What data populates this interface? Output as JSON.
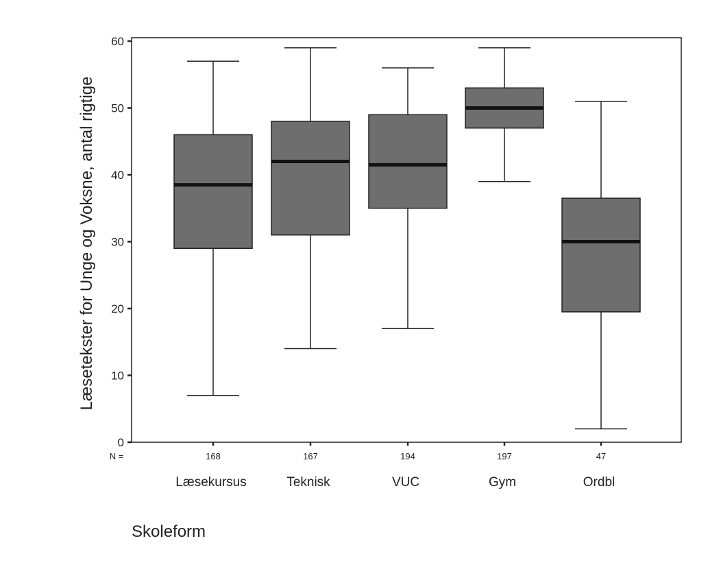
{
  "chart_data": {
    "type": "boxplot",
    "ylabel": "Læsetekster for Unge og Voksne, antal rigtige",
    "xlabel": "Skoleform",
    "ylim": [
      0,
      60
    ],
    "yticks": [
      "0",
      "10",
      "20",
      "30",
      "40",
      "50",
      "60"
    ],
    "n_prefix": "N =",
    "categories": [
      "Læsekursus",
      "Teknisk",
      "VUC",
      "Gym",
      "Ordbl"
    ],
    "n": [
      "168",
      "167",
      "194",
      "197",
      "47"
    ],
    "boxes": [
      {
        "min": 7,
        "q1": 29,
        "median": 38.5,
        "q3": 46,
        "max": 57
      },
      {
        "min": 14,
        "q1": 31,
        "median": 42,
        "q3": 48,
        "max": 59
      },
      {
        "min": 17,
        "q1": 35,
        "median": 41.5,
        "q3": 49,
        "max": 56
      },
      {
        "min": 39,
        "q1": 47,
        "median": 50,
        "q3": 53,
        "max": 59
      },
      {
        "min": 2,
        "q1": 19.5,
        "median": 30,
        "q3": 36.5,
        "max": 51
      }
    ],
    "box_color": "#6e6e6e",
    "median_color": "#111111",
    "grid": false
  }
}
